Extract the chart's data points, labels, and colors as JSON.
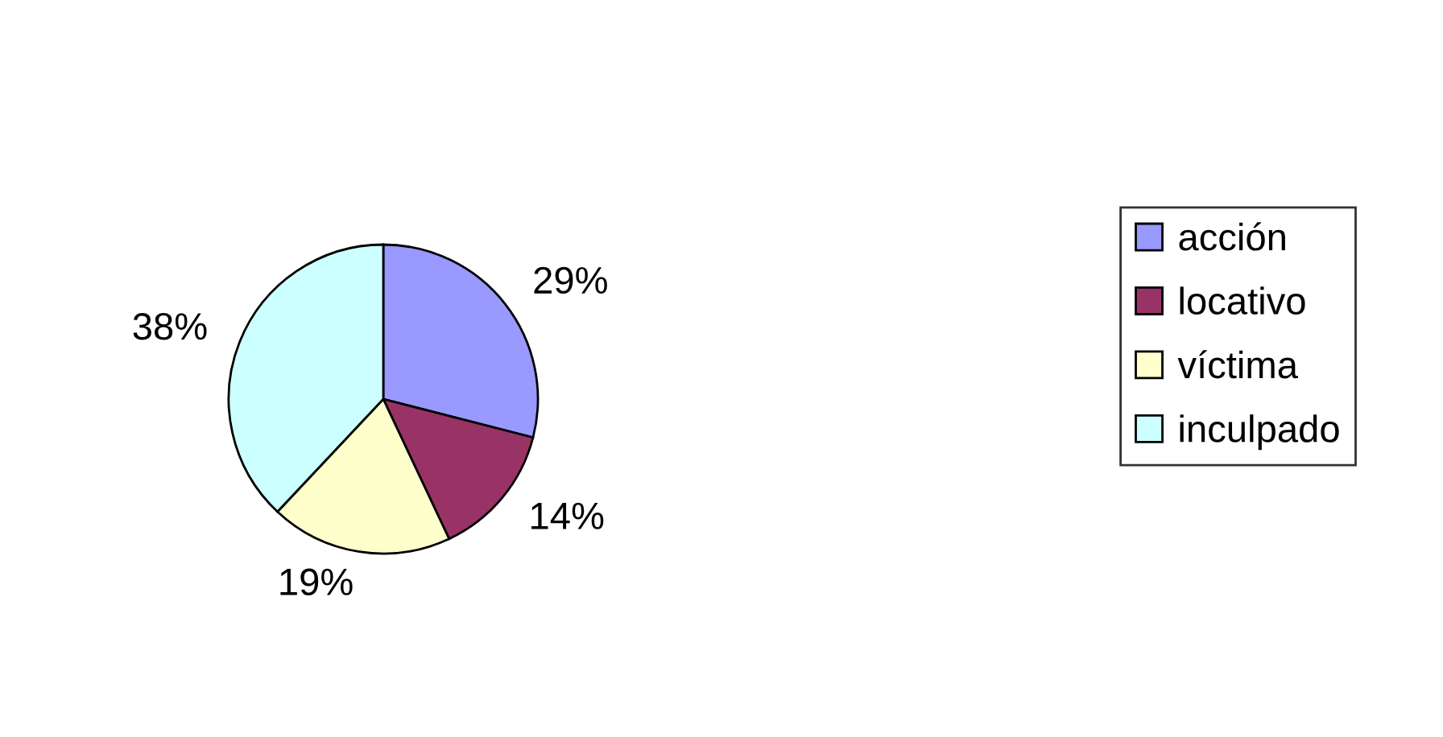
{
  "chart_data": {
    "type": "pie",
    "categories": [
      "acción",
      "locativo",
      "víctima",
      "inculpado"
    ],
    "values": [
      29,
      14,
      19,
      38
    ],
    "colors": [
      "#9999ff",
      "#993366",
      "#ffffcc",
      "#ccffff"
    ],
    "value_labels": [
      "29%",
      "14%",
      "19%",
      "38%"
    ],
    "legend": "right"
  }
}
